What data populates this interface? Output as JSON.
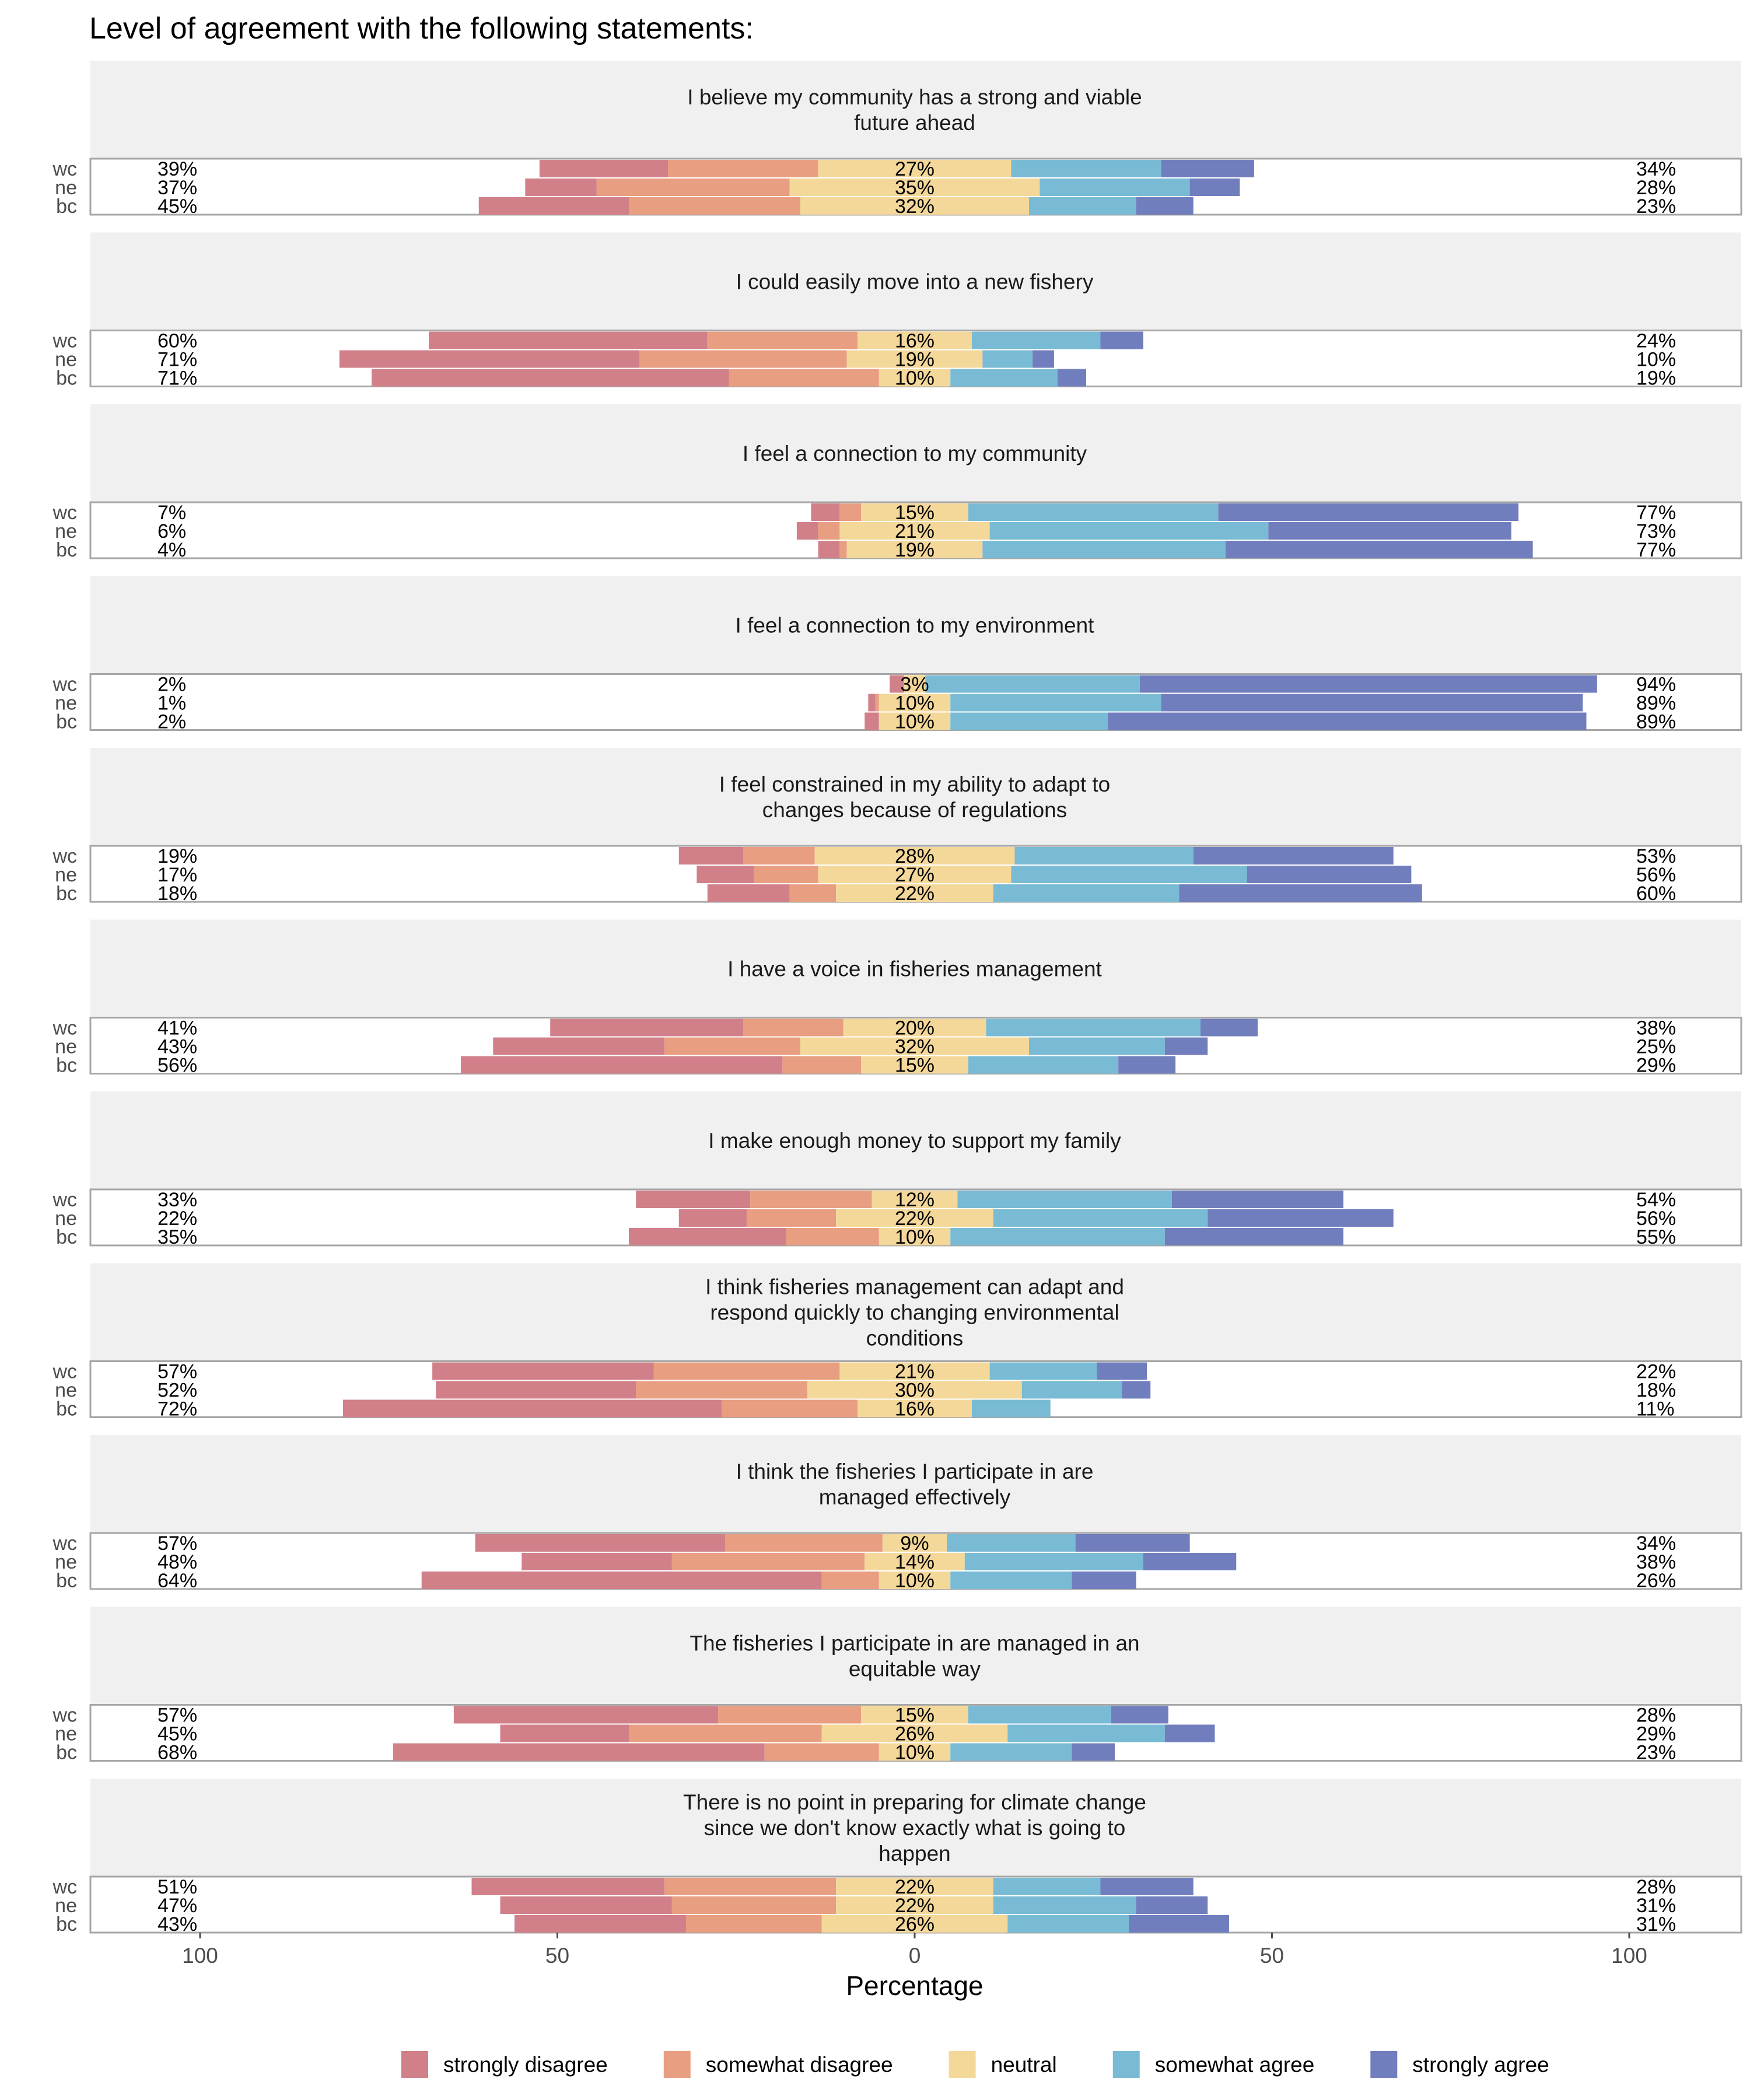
{
  "chart_data": {
    "type": "bar",
    "subtype": "diverging-stacked-horizontal",
    "title": "Level of agreement with the following statements:",
    "xlabel": "Percentage",
    "ylabel": "",
    "xlim": [
      -100,
      100
    ],
    "x_ticks": [
      {
        "value": -100,
        "label": "100"
      },
      {
        "value": -50,
        "label": "50"
      },
      {
        "value": 0,
        "label": "0"
      },
      {
        "value": 50,
        "label": "50"
      },
      {
        "value": 100,
        "label": "100"
      }
    ],
    "legend_position": "bottom",
    "groups": [
      "wc",
      "ne",
      "bc"
    ],
    "categories": [
      {
        "key": "strongly_disagree",
        "name": "strongly disagree",
        "color": "#D1808A"
      },
      {
        "key": "somewhat_disagree",
        "name": "somewhat disagree",
        "color": "#E89E80"
      },
      {
        "key": "neutral",
        "name": "neutral",
        "color": "#F4D89A"
      },
      {
        "key": "somewhat_agree",
        "name": "somewhat agree",
        "color": "#79BBD4"
      },
      {
        "key": "strongly_agree",
        "name": "strongly agree",
        "color": "#717EBE"
      }
    ],
    "panels": [
      {
        "statement_lines": [
          "I believe my community has a strong and viable",
          "future ahead"
        ],
        "rows": [
          {
            "group": "wc",
            "values": [
              18,
              21,
              27,
              21,
              13
            ],
            "left_label": "39%",
            "neutral_label": "27%",
            "right_label": "34%"
          },
          {
            "group": "ne",
            "values": [
              10,
              27,
              35,
              21,
              7
            ],
            "left_label": "37%",
            "neutral_label": "35%",
            "right_label": "28%"
          },
          {
            "group": "bc",
            "values": [
              21,
              24,
              32,
              15,
              8
            ],
            "left_label": "45%",
            "neutral_label": "32%",
            "right_label": "23%"
          }
        ]
      },
      {
        "statement_lines": [
          "I could easily move into a new fishery"
        ],
        "rows": [
          {
            "group": "wc",
            "values": [
              39,
              21,
              16,
              18,
              6
            ],
            "left_label": "60%",
            "neutral_label": "16%",
            "right_label": "24%"
          },
          {
            "group": "ne",
            "values": [
              42,
              29,
              19,
              7,
              3
            ],
            "left_label": "71%",
            "neutral_label": "19%",
            "right_label": "10%"
          },
          {
            "group": "bc",
            "values": [
              50,
              21,
              10,
              15,
              4
            ],
            "left_label": "71%",
            "neutral_label": "10%",
            "right_label": "19%"
          }
        ]
      },
      {
        "statement_lines": [
          "I feel a connection to my community"
        ],
        "rows": [
          {
            "group": "wc",
            "values": [
              4,
              3,
              15,
              35,
              42
            ],
            "left_label": "7%",
            "neutral_label": "15%",
            "right_label": "77%"
          },
          {
            "group": "ne",
            "values": [
              3,
              3,
              21,
              39,
              34
            ],
            "left_label": "6%",
            "neutral_label": "21%",
            "right_label": "73%"
          },
          {
            "group": "bc",
            "values": [
              3,
              1,
              19,
              34,
              43
            ],
            "left_label": "4%",
            "neutral_label": "19%",
            "right_label": "77%"
          }
        ]
      },
      {
        "statement_lines": [
          "I feel a connection to my environment"
        ],
        "rows": [
          {
            "group": "wc",
            "values": [
              2,
              0,
              3,
              30,
              64
            ],
            "left_label": "2%",
            "neutral_label": "3%",
            "right_label": "94%"
          },
          {
            "group": "ne",
            "values": [
              1,
              0.5,
              10,
              29.5,
              59
            ],
            "left_label": "1%",
            "neutral_label": "10%",
            "right_label": "89%"
          },
          {
            "group": "bc",
            "values": [
              2,
              0,
              10,
              22,
              67
            ],
            "left_label": "2%",
            "neutral_label": "10%",
            "right_label": "89%"
          }
        ]
      },
      {
        "statement_lines": [
          "I feel constrained in my ability to adapt to",
          "changes because of regulations"
        ],
        "rows": [
          {
            "group": "wc",
            "values": [
              9,
              10,
              28,
              25,
              28
            ],
            "left_label": "19%",
            "neutral_label": "28%",
            "right_label": "53%"
          },
          {
            "group": "ne",
            "values": [
              8,
              9,
              27,
              33,
              23
            ],
            "left_label": "17%",
            "neutral_label": "27%",
            "right_label": "56%"
          },
          {
            "group": "bc",
            "values": [
              11.5,
              6.5,
              22,
              26,
              34
            ],
            "left_label": "18%",
            "neutral_label": "22%",
            "right_label": "60%"
          }
        ]
      },
      {
        "statement_lines": [
          "I have a voice in fisheries management"
        ],
        "rows": [
          {
            "group": "wc",
            "values": [
              27,
              14,
              20,
              30,
              8
            ],
            "left_label": "41%",
            "neutral_label": "20%",
            "right_label": "38%"
          },
          {
            "group": "ne",
            "values": [
              24,
              19,
              32,
              19,
              6
            ],
            "left_label": "43%",
            "neutral_label": "32%",
            "right_label": "25%"
          },
          {
            "group": "bc",
            "values": [
              45,
              11,
              15,
              21,
              8
            ],
            "left_label": "56%",
            "neutral_label": "15%",
            "right_label": "29%"
          }
        ]
      },
      {
        "statement_lines": [
          "I make enough money to support my family"
        ],
        "rows": [
          {
            "group": "wc",
            "values": [
              16,
              17,
              12,
              30,
              24
            ],
            "left_label": "33%",
            "neutral_label": "12%",
            "right_label": "54%"
          },
          {
            "group": "ne",
            "values": [
              9.5,
              12.5,
              22,
              30,
              26
            ],
            "left_label": "22%",
            "neutral_label": "22%",
            "right_label": "56%"
          },
          {
            "group": "bc",
            "values": [
              22,
              13,
              10,
              30,
              25
            ],
            "left_label": "35%",
            "neutral_label": "10%",
            "right_label": "55%"
          }
        ]
      },
      {
        "statement_lines": [
          "I think fisheries management can adapt and",
          "respond quickly to changing environmental",
          "conditions"
        ],
        "rows": [
          {
            "group": "wc",
            "values": [
              31,
              26,
              21,
              15,
              7
            ],
            "left_label": "57%",
            "neutral_label": "21%",
            "right_label": "22%"
          },
          {
            "group": "ne",
            "values": [
              28,
              24,
              30,
              14,
              4
            ],
            "left_label": "52%",
            "neutral_label": "30%",
            "right_label": "18%"
          },
          {
            "group": "bc",
            "values": [
              53,
              19,
              16,
              11,
              0
            ],
            "left_label": "72%",
            "neutral_label": "16%",
            "right_label": "11%"
          }
        ]
      },
      {
        "statement_lines": [
          "I think the fisheries I participate in are",
          "managed effectively"
        ],
        "rows": [
          {
            "group": "wc",
            "values": [
              35,
              22,
              9,
              18,
              16
            ],
            "left_label": "57%",
            "neutral_label": "9%",
            "right_label": "34%"
          },
          {
            "group": "ne",
            "values": [
              21,
              27,
              14,
              25,
              13
            ],
            "left_label": "48%",
            "neutral_label": "14%",
            "right_label": "38%"
          },
          {
            "group": "bc",
            "values": [
              56,
              8,
              10,
              17,
              9
            ],
            "left_label": "64%",
            "neutral_label": "10%",
            "right_label": "26%"
          }
        ]
      },
      {
        "statement_lines": [
          "The fisheries I participate in are managed in an",
          "equitable way"
        ],
        "rows": [
          {
            "group": "wc",
            "values": [
              37,
              20,
              15,
              20,
              8
            ],
            "left_label": "57%",
            "neutral_label": "15%",
            "right_label": "28%"
          },
          {
            "group": "ne",
            "values": [
              18,
              27,
              26,
              22,
              7
            ],
            "left_label": "45%",
            "neutral_label": "26%",
            "right_label": "29%"
          },
          {
            "group": "bc",
            "values": [
              52,
              16,
              10,
              17,
              6
            ],
            "left_label": "68%",
            "neutral_label": "10%",
            "right_label": "23%"
          }
        ]
      },
      {
        "statement_lines": [
          "There is no point in preparing for climate change",
          "since we don't know exactly what is going to",
          "happen"
        ],
        "rows": [
          {
            "group": "wc",
            "values": [
              27,
              24,
              22,
              15,
              13
            ],
            "left_label": "51%",
            "neutral_label": "22%",
            "right_label": "28%"
          },
          {
            "group": "ne",
            "values": [
              24,
              23,
              22,
              20,
              10
            ],
            "left_label": "47%",
            "neutral_label": "22%",
            "right_label": "31%"
          },
          {
            "group": "bc",
            "values": [
              24,
              19,
              26,
              17,
              14
            ],
            "left_label": "43%",
            "neutral_label": "26%",
            "right_label": "31%"
          }
        ]
      }
    ]
  }
}
